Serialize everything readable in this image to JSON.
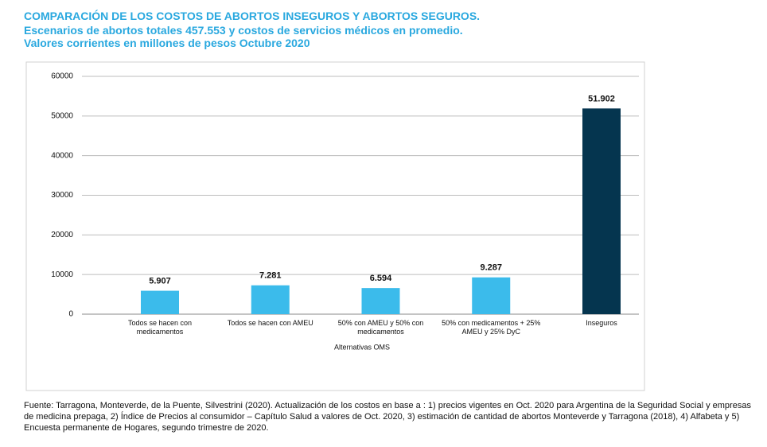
{
  "chart_data": {
    "type": "bar",
    "title": "COMPARACIÓN DE LOS COSTOS DE ABORTOS INSEGUROS Y ABORTOS SEGUROS.",
    "subtitle": "Escenarios de abortos totales 457.553 y costos de servicios médicos en promedio.",
    "subtitle_2": "Valores corrientes en millones de pesos Octubre 2020",
    "x_label": "Alternativas OMS",
    "categories": [
      "Todos se hacen con medicamentos",
      "Todos se hacen con AMEU",
      "50% con AMEU y 50% con medicamentos",
      "50% con medicamentos + 25% AMEU y 25% DyC",
      "Inseguros"
    ],
    "values": [
      5907,
      7281,
      6594,
      9287,
      51902
    ],
    "value_labels": [
      "5.907",
      "7.281",
      "6.594",
      "9.287",
      "51.902"
    ],
    "colors": [
      "#3bbbeb",
      "#3bbbeb",
      "#3bbbeb",
      "#3bbbeb",
      "#05354f"
    ],
    "ylim": [
      0,
      60000
    ],
    "yticks": [
      0,
      10000,
      20000,
      30000,
      40000,
      50000,
      60000
    ],
    "grid": true,
    "source": "Fuente: Tarragona, Monteverde, de la Puente, Silvestrini (2020). Actualización de los costos en base a : 1) precios vigentes en Oct. 2020 para Argentina de la Seguridad Social y empresas de medicina prepaga, 2) Índice de Precios al consumidor – Capítulo Salud a valores de Oct. 2020, 3) estimación de cantidad de abortos Monteverde y Tarragona (2018), 4) Alfabeta y 5) Encuesta permanente de Hogares, segundo trimestre de 2020."
  }
}
